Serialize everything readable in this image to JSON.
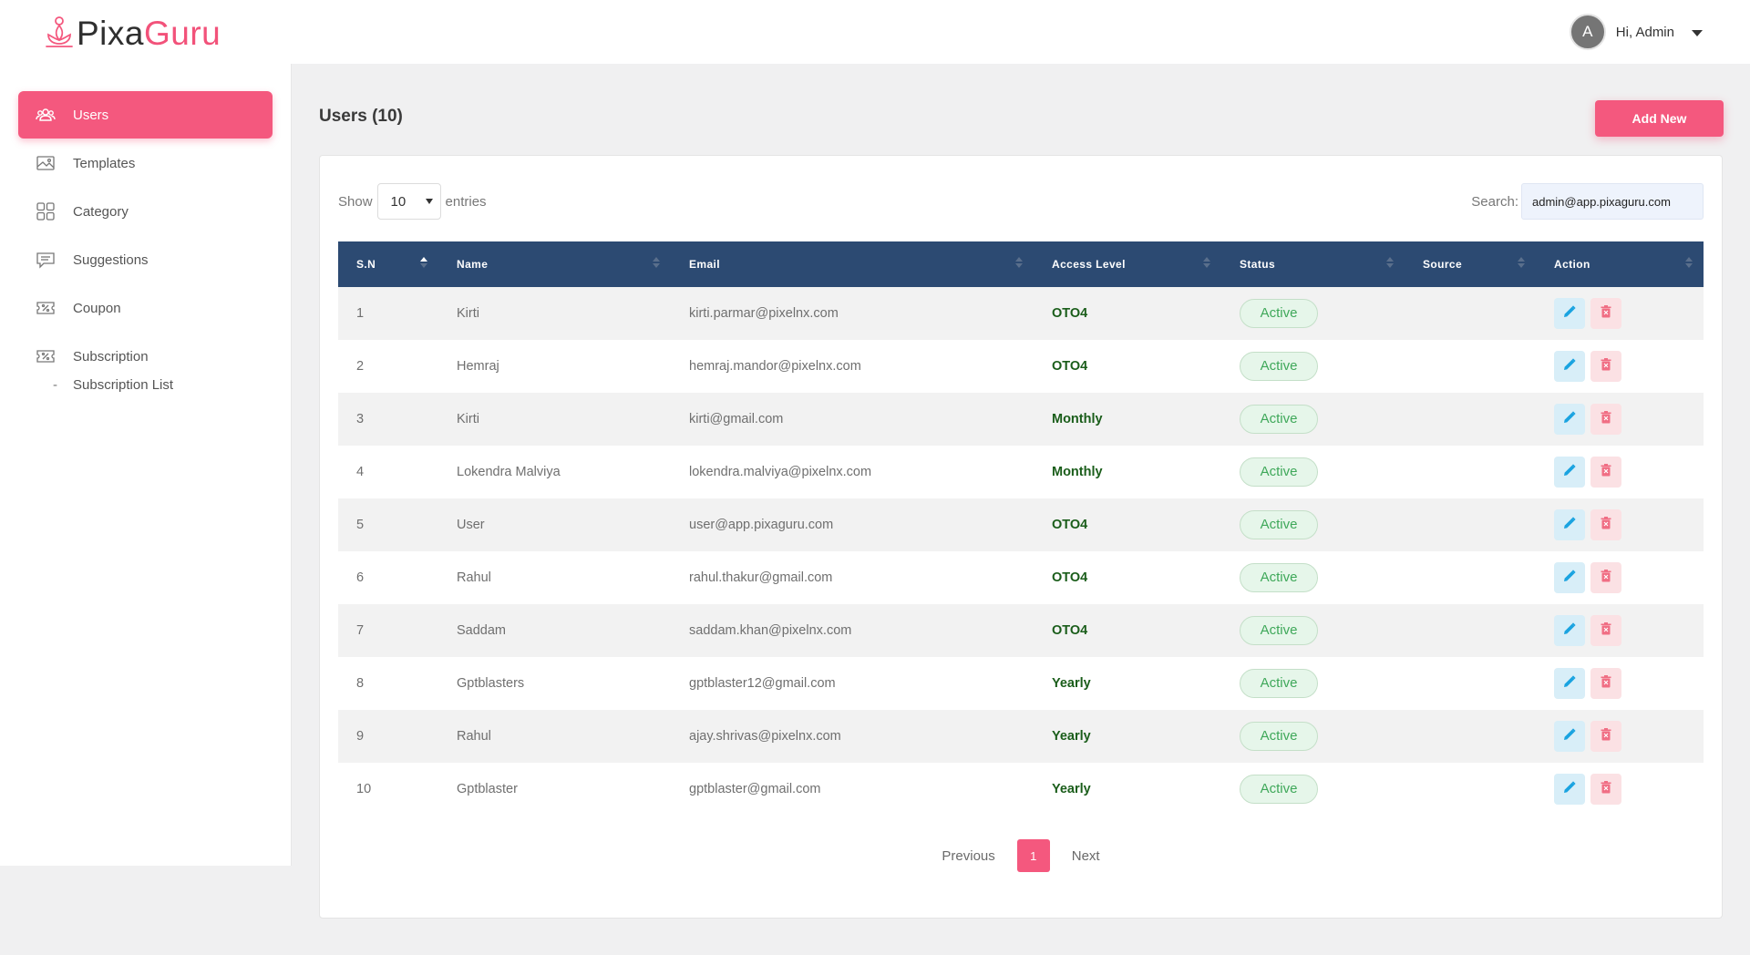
{
  "app": {
    "logo_part1": "Pixa",
    "logo_part2": "Guru",
    "brand_color": "#f4587e"
  },
  "header": {
    "avatar_letter": "A",
    "greeting": "Hi, Admin"
  },
  "sidebar": {
    "items": [
      {
        "label": "Users",
        "icon": "users-icon",
        "active": true
      },
      {
        "label": "Templates",
        "icon": "image-icon"
      },
      {
        "label": "Category",
        "icon": "grid-icon"
      },
      {
        "label": "Suggestions",
        "icon": "chat-icon"
      },
      {
        "label": "Coupon",
        "icon": "coupon-icon"
      },
      {
        "label": "Subscription",
        "icon": "ticket-icon"
      }
    ],
    "sub_items": [
      {
        "label": "Subscription List"
      }
    ]
  },
  "main": {
    "title": "Users (10)",
    "add_button": "Add New",
    "show_label": "Show",
    "entries_value": "10",
    "entries_label": "entries",
    "search_label": "Search:",
    "search_value": "admin@app.pixaguru.com",
    "columns": [
      "S.N",
      "Name",
      "Email",
      "Access Level",
      "Status",
      "Source",
      "Action"
    ],
    "rows": [
      {
        "sn": "1",
        "name": "Kirti",
        "email": "kirti.parmar@pixelnx.com",
        "access": "OTO4",
        "status": "Active",
        "source": ""
      },
      {
        "sn": "2",
        "name": "Hemraj",
        "email": "hemraj.mandor@pixelnx.com",
        "access": "OTO4",
        "status": "Active",
        "source": ""
      },
      {
        "sn": "3",
        "name": "Kirti",
        "email": "kirti@gmail.com",
        "access": "Monthly",
        "status": "Active",
        "source": ""
      },
      {
        "sn": "4",
        "name": "Lokendra Malviya",
        "email": "lokendra.malviya@pixelnx.com",
        "access": "Monthly",
        "status": "Active",
        "source": ""
      },
      {
        "sn": "5",
        "name": "User",
        "email": "user@app.pixaguru.com",
        "access": "OTO4",
        "status": "Active",
        "source": ""
      },
      {
        "sn": "6",
        "name": "Rahul",
        "email": "rahul.thakur@gmail.com",
        "access": "OTO4",
        "status": "Active",
        "source": ""
      },
      {
        "sn": "7",
        "name": "Saddam",
        "email": "saddam.khan@pixelnx.com",
        "access": "OTO4",
        "status": "Active",
        "source": ""
      },
      {
        "sn": "8",
        "name": "Gptblasters",
        "email": "gptblaster12@gmail.com",
        "access": "Yearly",
        "status": "Active",
        "source": ""
      },
      {
        "sn": "9",
        "name": "Rahul",
        "email": "ajay.shrivas@pixelnx.com",
        "access": "Yearly",
        "status": "Active",
        "source": ""
      },
      {
        "sn": "10",
        "name": "Gptblaster",
        "email": "gptblaster@gmail.com",
        "access": "Yearly",
        "status": "Active",
        "source": ""
      }
    ],
    "pagination": {
      "previous": "Previous",
      "current": "1",
      "next": "Next"
    }
  }
}
